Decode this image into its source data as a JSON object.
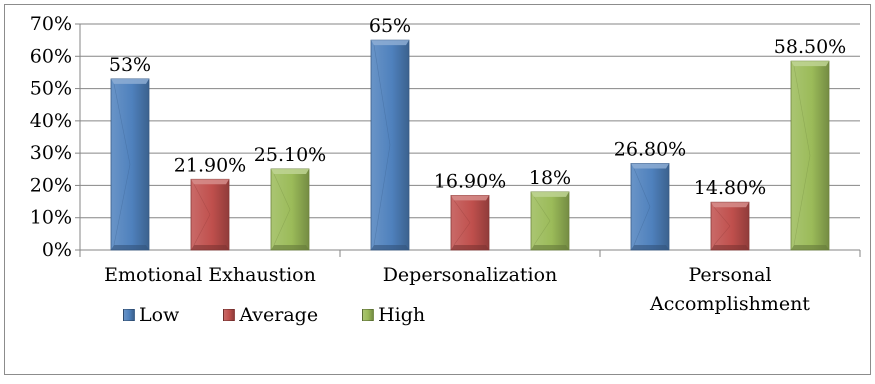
{
  "chart_data": {
    "type": "bar",
    "categories": [
      "Emotional Exhaustion",
      "Depersonalization",
      "Personal\nAccomplishment"
    ],
    "series": [
      {
        "name": "Low",
        "values": [
          53,
          65,
          26.8
        ],
        "labels": [
          "53%",
          "65%",
          "26.80%"
        ],
        "color": "#4F81BD"
      },
      {
        "name": "Average",
        "values": [
          21.9,
          16.9,
          14.8
        ],
        "labels": [
          "21.90%",
          "16.90%",
          "14.80%"
        ],
        "color": "#C0504D"
      },
      {
        "name": "High",
        "values": [
          25.1,
          18,
          58.5
        ],
        "labels": [
          "25.10%",
          "18%",
          "58.50%"
        ],
        "color": "#9BBB59"
      }
    ],
    "ylim": [
      0,
      70
    ],
    "yticks": [
      "0%",
      "10%",
      "20%",
      "30%",
      "40%",
      "50%",
      "60%",
      "70%"
    ],
    "grid": true,
    "legend_position": "bottom-left",
    "title": "",
    "xlabel": "",
    "ylabel": ""
  }
}
